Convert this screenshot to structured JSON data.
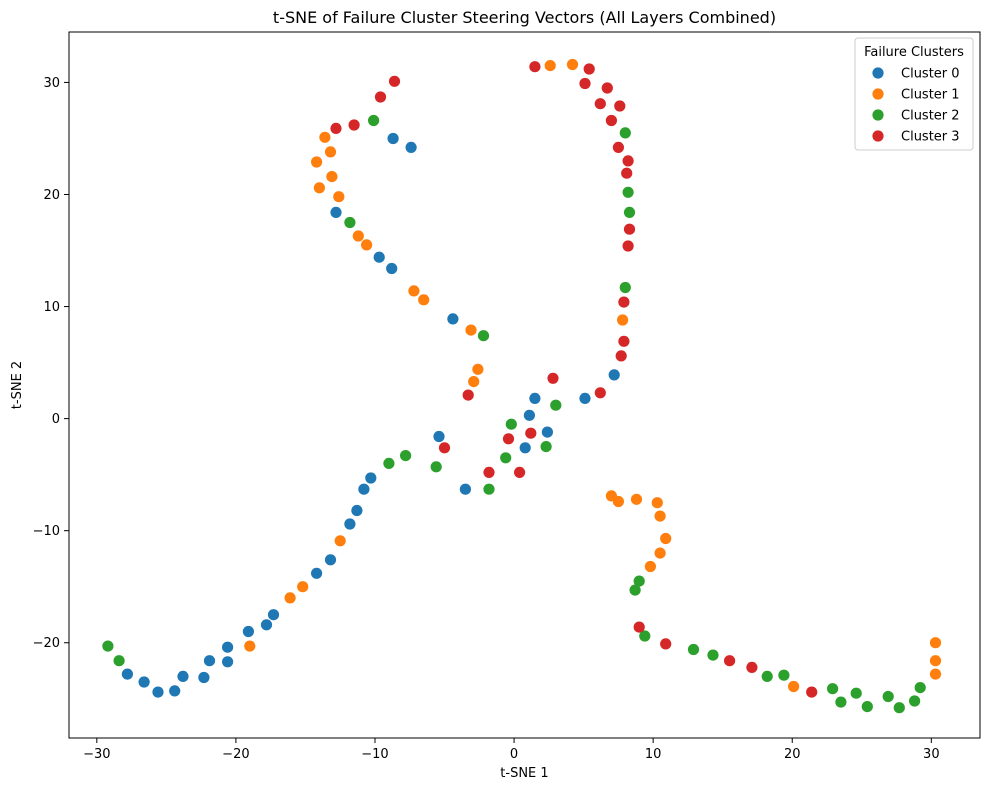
{
  "chart_data": {
    "type": "scatter",
    "title": "t-SNE of Failure Cluster Steering Vectors (All Layers Combined)",
    "xlabel": "t-SNE 1",
    "ylabel": "t-SNE 2",
    "xlim": [
      -32,
      33.5
    ],
    "ylim": [
      -28.5,
      34.5
    ],
    "xticks": [
      -30,
      -20,
      -10,
      0,
      10,
      20,
      30
    ],
    "yticks": [
      -20,
      -10,
      0,
      10,
      20,
      30
    ],
    "grid": false,
    "legend": {
      "title": "Failure Clusters",
      "position": "top-right"
    },
    "series": [
      {
        "name": "Cluster 0",
        "color": "#1f77b4",
        "points": [
          [
            -8.7,
            25.0
          ],
          [
            -7.4,
            24.2
          ],
          [
            -12.8,
            18.4
          ],
          [
            -9.7,
            14.4
          ],
          [
            -8.8,
            13.4
          ],
          [
            -4.4,
            8.9
          ],
          [
            1.5,
            1.8
          ],
          [
            5.1,
            1.8
          ],
          [
            7.2,
            3.9
          ],
          [
            1.1,
            0.3
          ],
          [
            2.4,
            -1.2
          ],
          [
            0.8,
            -2.6
          ],
          [
            -5.4,
            -1.6
          ],
          [
            -3.5,
            -6.3
          ],
          [
            -10.3,
            -5.3
          ],
          [
            -10.8,
            -6.3
          ],
          [
            -11.3,
            -8.2
          ],
          [
            -11.8,
            -9.4
          ],
          [
            -13.2,
            -12.6
          ],
          [
            -14.2,
            -13.8
          ],
          [
            -17.3,
            -17.5
          ],
          [
            -17.8,
            -18.4
          ],
          [
            -19.1,
            -19.0
          ],
          [
            -20.6,
            -20.4
          ],
          [
            -20.6,
            -21.7
          ],
          [
            -21.9,
            -21.6
          ],
          [
            -22.3,
            -23.1
          ],
          [
            -23.8,
            -23.0
          ],
          [
            -24.4,
            -24.3
          ],
          [
            -25.6,
            -24.4
          ],
          [
            -26.6,
            -23.5
          ],
          [
            -27.8,
            -22.8
          ]
        ]
      },
      {
        "name": "Cluster 1",
        "color": "#ff7f0e",
        "points": [
          [
            -13.6,
            25.1
          ],
          [
            -13.2,
            23.8
          ],
          [
            -14.2,
            22.9
          ],
          [
            -13.1,
            21.6
          ],
          [
            -14.0,
            20.6
          ],
          [
            -12.6,
            19.8
          ],
          [
            -11.2,
            16.3
          ],
          [
            -10.6,
            15.5
          ],
          [
            -7.2,
            11.4
          ],
          [
            -6.5,
            10.6
          ],
          [
            -3.1,
            7.9
          ],
          [
            -2.6,
            4.4
          ],
          [
            -2.9,
            3.3
          ],
          [
            2.6,
            31.5
          ],
          [
            4.2,
            31.6
          ],
          [
            7.8,
            8.8
          ],
          [
            7.0,
            -6.9
          ],
          [
            7.5,
            -7.4
          ],
          [
            8.8,
            -7.2
          ],
          [
            10.3,
            -7.5
          ],
          [
            10.5,
            -8.7
          ],
          [
            10.9,
            -10.7
          ],
          [
            10.5,
            -12.0
          ],
          [
            9.8,
            -13.2
          ],
          [
            -12.5,
            -10.9
          ],
          [
            -15.2,
            -15.0
          ],
          [
            -16.1,
            -16.0
          ],
          [
            -19.0,
            -20.3
          ],
          [
            20.1,
            -23.9
          ],
          [
            30.3,
            -20.0
          ],
          [
            30.3,
            -21.6
          ],
          [
            30.3,
            -22.8
          ]
        ]
      },
      {
        "name": "Cluster 2",
        "color": "#2ca02c",
        "points": [
          [
            -10.1,
            26.6
          ],
          [
            -11.8,
            17.5
          ],
          [
            8.0,
            25.5
          ],
          [
            8.2,
            20.2
          ],
          [
            8.3,
            18.4
          ],
          [
            8.0,
            11.7
          ],
          [
            -2.2,
            7.4
          ],
          [
            3.0,
            1.2
          ],
          [
            -0.2,
            -0.5
          ],
          [
            2.3,
            -2.5
          ],
          [
            -0.6,
            -3.5
          ],
          [
            -1.8,
            -6.3
          ],
          [
            -5.6,
            -4.3
          ],
          [
            -7.8,
            -3.3
          ],
          [
            -9.0,
            -4.0
          ],
          [
            9.0,
            -14.5
          ],
          [
            8.7,
            -15.3
          ],
          [
            9.4,
            -19.4
          ],
          [
            12.9,
            -20.6
          ],
          [
            14.3,
            -21.1
          ],
          [
            18.2,
            -23.0
          ],
          [
            19.4,
            -22.9
          ],
          [
            22.9,
            -24.1
          ],
          [
            23.5,
            -25.3
          ],
          [
            24.6,
            -24.5
          ],
          [
            25.4,
            -25.7
          ],
          [
            26.9,
            -24.8
          ],
          [
            27.7,
            -25.8
          ],
          [
            28.8,
            -25.2
          ],
          [
            29.2,
            -24.0
          ],
          [
            -29.2,
            -20.3
          ],
          [
            -28.4,
            -21.6
          ]
        ]
      },
      {
        "name": "Cluster 3",
        "color": "#d62728",
        "points": [
          [
            -8.6,
            30.1
          ],
          [
            -9.6,
            28.7
          ],
          [
            -11.5,
            26.2
          ],
          [
            -12.8,
            25.9
          ],
          [
            1.5,
            31.4
          ],
          [
            5.4,
            31.2
          ],
          [
            5.1,
            29.9
          ],
          [
            6.7,
            29.5
          ],
          [
            6.2,
            28.1
          ],
          [
            7.6,
            27.9
          ],
          [
            7.0,
            26.6
          ],
          [
            7.5,
            24.2
          ],
          [
            8.2,
            23.0
          ],
          [
            8.1,
            21.9
          ],
          [
            8.3,
            16.9
          ],
          [
            8.2,
            15.4
          ],
          [
            7.9,
            10.4
          ],
          [
            7.9,
            6.9
          ],
          [
            7.7,
            5.6
          ],
          [
            6.2,
            2.3
          ],
          [
            2.8,
            3.6
          ],
          [
            -3.3,
            2.1
          ],
          [
            -5.0,
            -2.6
          ],
          [
            -0.4,
            -1.8
          ],
          [
            1.2,
            -1.3
          ],
          [
            -1.8,
            -4.8
          ],
          [
            0.4,
            -4.8
          ],
          [
            9.0,
            -18.6
          ],
          [
            10.9,
            -20.1
          ],
          [
            15.5,
            -21.6
          ],
          [
            17.1,
            -22.2
          ],
          [
            21.4,
            -24.4
          ]
        ]
      }
    ]
  }
}
